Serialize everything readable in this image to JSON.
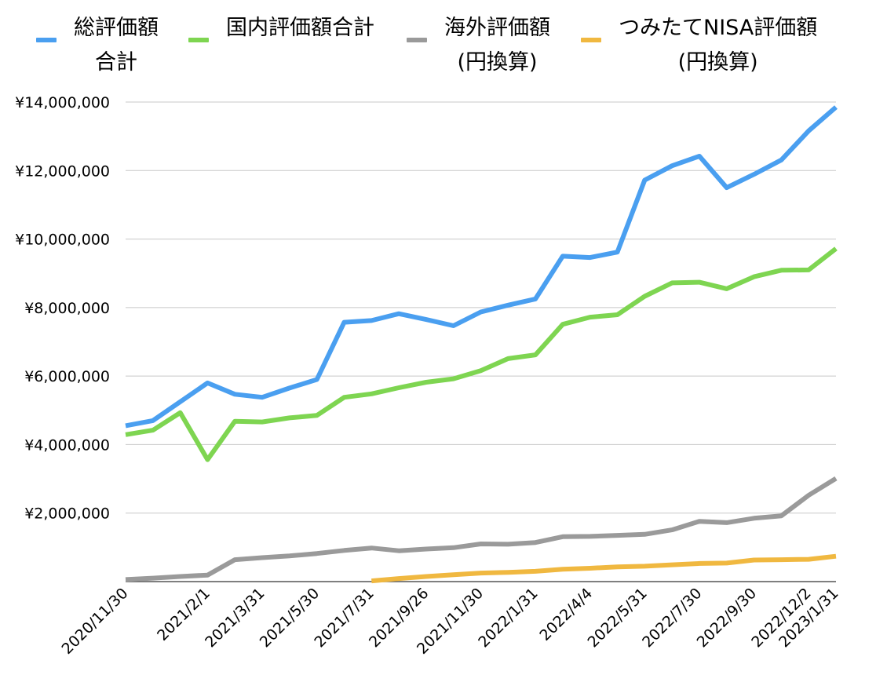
{
  "chart_data": {
    "type": "line",
    "title": "",
    "xlabel": "",
    "ylabel": "",
    "ylim": [
      0,
      14000000
    ],
    "yticks": [
      "¥2,000,000",
      "¥4,000,000",
      "¥6,000,000",
      "¥8,000,000",
      "¥10,000,000",
      "¥12,000,000",
      "¥14,000,000"
    ],
    "ytick_values": [
      2000000,
      4000000,
      6000000,
      8000000,
      10000000,
      12000000,
      14000000
    ],
    "x_tick_labels": [
      "2020/11/30",
      "2021/2/1",
      "2021/3/31",
      "2021/5/30",
      "2021/7/31",
      "2021/9/26",
      "2021/11/30",
      "2022/1/31",
      "2022/4/4",
      "2022/5/31",
      "2022/7/30",
      "2022/9/30",
      "2022/12/2",
      "2023/1/31"
    ],
    "x_tick_indices": [
      0,
      3,
      5,
      7,
      9,
      11,
      13,
      15,
      17,
      19,
      21,
      23,
      25,
      26
    ],
    "point_count": 27,
    "grid": true,
    "legend_position": "top",
    "series": [
      {
        "name": "総評価額\n合計",
        "color": "#4A9FF0",
        "start_index": 0,
        "values": [
          4550000,
          4700000,
          5250000,
          5800000,
          5470000,
          5380000,
          5650000,
          5900000,
          7570000,
          7620000,
          7820000,
          7650000,
          7470000,
          7870000,
          8070000,
          8250000,
          9500000,
          9460000,
          9620000,
          11720000,
          12140000,
          12420000,
          11500000,
          11890000,
          12310000,
          13160000,
          13850000
        ]
      },
      {
        "name": "国内評価額合計",
        "color": "#7ED551",
        "start_index": 0,
        "values": [
          4290000,
          4420000,
          4930000,
          3560000,
          4680000,
          4660000,
          4780000,
          4850000,
          5380000,
          5480000,
          5660000,
          5820000,
          5920000,
          6160000,
          6510000,
          6620000,
          7510000,
          7720000,
          7790000,
          8330000,
          8720000,
          8740000,
          8550000,
          8900000,
          9090000,
          9100000,
          9720000
        ]
      },
      {
        "name": "海外評価額\n(円換算)",
        "color": "#9A9A9A",
        "start_index": 0,
        "values": [
          60000,
          100000,
          150000,
          190000,
          640000,
          700000,
          750000,
          820000,
          910000,
          980000,
          900000,
          950000,
          990000,
          1100000,
          1090000,
          1140000,
          1310000,
          1320000,
          1350000,
          1380000,
          1510000,
          1760000,
          1720000,
          1850000,
          1920000,
          2520000,
          3010000
        ]
      },
      {
        "name": "つみたてNISA評価額\n(円換算)",
        "color": "#F0B840",
        "start_index": 9,
        "values": [
          20000,
          90000,
          150000,
          200000,
          250000,
          270000,
          300000,
          360000,
          390000,
          430000,
          450000,
          490000,
          530000,
          540000,
          630000,
          640000,
          650000,
          740000
        ]
      }
    ]
  }
}
